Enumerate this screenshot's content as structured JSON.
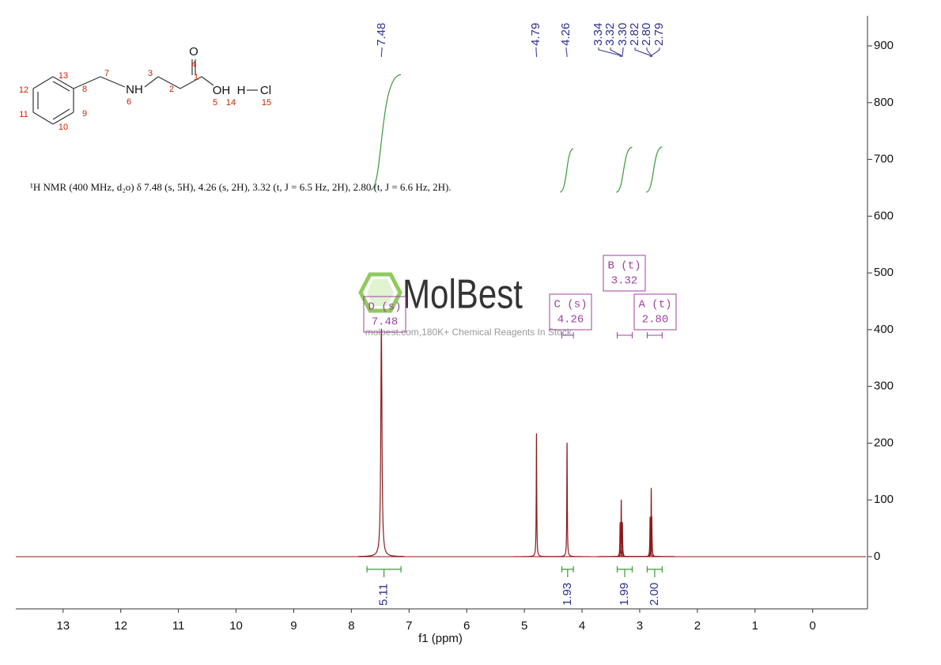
{
  "structure": {
    "labels": [
      "13",
      "12",
      "11",
      "10",
      "9",
      "8",
      "7",
      "NH",
      "6",
      "3",
      "2",
      "1",
      "O",
      "4",
      "OH",
      "5",
      "H",
      "14",
      "Cl",
      "15"
    ]
  },
  "description": "¹H NMR (400 MHz, d₂o) δ 7.48 (s, 5H), 4.26 (s, 2H), 3.32 (t, J = 6.5 Hz, 2H), 2.80 (t, J = 6.6 Hz, 2H).",
  "watermark": {
    "brand": "MolBest",
    "tagline": "molbest.com,180K+ Chemical Reagents In Stock."
  },
  "chart_data": {
    "type": "spectrum",
    "x_label": "f1 (ppm)",
    "xlim": [
      13.82,
      -0.95
    ],
    "xticks": [
      13,
      12,
      11,
      10,
      9,
      8,
      7,
      6,
      5,
      4,
      3,
      2,
      1,
      0
    ],
    "ylim": [
      -92,
      953
    ],
    "yticks": [
      0,
      100,
      200,
      300,
      400,
      500,
      600,
      700,
      800,
      900
    ],
    "color": "#8b1a1a",
    "peaks": {
      "ppm": [
        7.48,
        4.79,
        4.26,
        3.34,
        3.32,
        3.3,
        2.82,
        2.8,
        2.79
      ],
      "height": [
        400,
        217,
        200,
        60,
        100,
        60,
        70,
        120,
        70
      ],
      "labels": [
        "7.48",
        "4.79",
        "4.26",
        "3.34",
        "3.32",
        "3.30",
        "2.82",
        "2.80",
        "2.79"
      ]
    },
    "integrals": {
      "from": [
        7.73,
        4.35,
        3.39,
        2.87
      ],
      "to": [
        7.14,
        4.15,
        3.13,
        2.61
      ],
      "values": [
        5.11,
        1.93,
        1.99,
        2
      ],
      "value_labels": [
        "5.11",
        "1.93",
        "1.99",
        "2.00"
      ]
    },
    "multiplets": {
      "labels": [
        "D (s)",
        "C (s)",
        "B (t)",
        "A (t)"
      ],
      "shifts": [
        "7.48",
        "4.26",
        "3.32",
        "2.80"
      ]
    }
  }
}
